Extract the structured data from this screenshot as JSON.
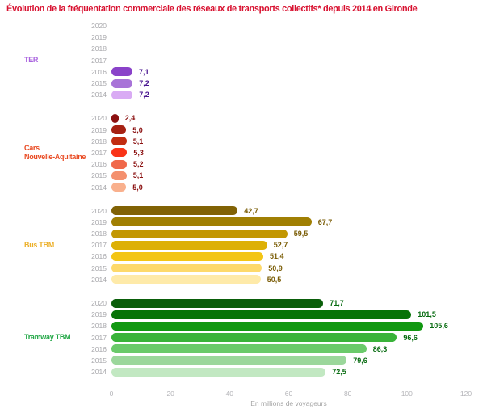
{
  "title": "Évolution de la fréquentation commerciale des réseaux de transports collectifs* depuis 2014 en Gironde",
  "colors": {
    "title": "#d8102f",
    "year_label": "#a8a8ac",
    "tick_label": "#b4b4b8",
    "axis_label": "#a5a5a5",
    "background": "#ffffff"
  },
  "chart_data": {
    "type": "bar",
    "orientation": "horizontal",
    "title": "Évolution de la fréquentation commerciale des réseaux de transports collectifs* depuis 2014 en Gironde",
    "xlabel": "En millions de voyageurs",
    "xlim": [
      0,
      120
    ],
    "x_ticks": [
      0,
      20,
      40,
      60,
      80,
      100,
      120
    ],
    "grid": false,
    "legend": "none",
    "categories": [
      "2020",
      "2019",
      "2018",
      "2017",
      "2016",
      "2015",
      "2014"
    ],
    "series": [
      {
        "name": "TER",
        "label_lines": [
          "TER"
        ],
        "label_color": "#aa64df",
        "value_color": "#45128e",
        "values": [
          null,
          null,
          null,
          null,
          7.1,
          7.2,
          7.2
        ],
        "value_labels": [
          "",
          "",
          "",
          "",
          "7,1",
          "7,2",
          "7,2"
        ],
        "bar_colors": [
          null,
          null,
          null,
          null,
          "#8a42c9",
          "#a873d8",
          "#d9abf4"
        ]
      },
      {
        "name": "Cars Nouvelle-Aquitaine",
        "label_lines": [
          "Cars",
          "Nouvelle-Aquitaine"
        ],
        "label_color": "#e94a22",
        "value_color": "#8b1111",
        "values": [
          2.4,
          5.0,
          5.1,
          5.3,
          5.2,
          5.1,
          5.0
        ],
        "value_labels": [
          "2,4",
          "5,0",
          "5,1",
          "5,3",
          "5,2",
          "5,1",
          "5,0"
        ],
        "bar_colors": [
          "#8c1111",
          "#a62113",
          "#c12d12",
          "#f93418",
          "#f0684a",
          "#f4906e",
          "#f9b08d"
        ]
      },
      {
        "name": "Bus TBM",
        "label_lines": [
          "Bus TBM"
        ],
        "label_color": "#ecb02a",
        "value_color": "#7a5c05",
        "values": [
          42.7,
          67.7,
          59.5,
          52.7,
          51.4,
          50.9,
          50.5
        ],
        "value_labels": [
          "42,7",
          "67,7",
          "59,5",
          "52,7",
          "51,4",
          "50,9",
          "50,5"
        ],
        "bar_colors": [
          "#816205",
          "#a07f03",
          "#c29702",
          "#ddb005",
          "#f3c515",
          "#fdd96b",
          "#feeaa9"
        ]
      },
      {
        "name": "Tramway TBM",
        "label_lines": [
          "Tramway TBM"
        ],
        "label_color": "#22a746",
        "value_color": "#076b10",
        "values": [
          71.7,
          101.5,
          105.6,
          96.6,
          86.3,
          79.6,
          72.5
        ],
        "value_labels": [
          "71,7",
          "101,5",
          "105,6",
          "96,6",
          "86,3",
          "79,6",
          "72,5"
        ],
        "bar_colors": [
          "#0a5e0a",
          "#077307",
          "#119811",
          "#39b339",
          "#6aca6a",
          "#9bd79b",
          "#c2e8c2"
        ]
      }
    ]
  }
}
